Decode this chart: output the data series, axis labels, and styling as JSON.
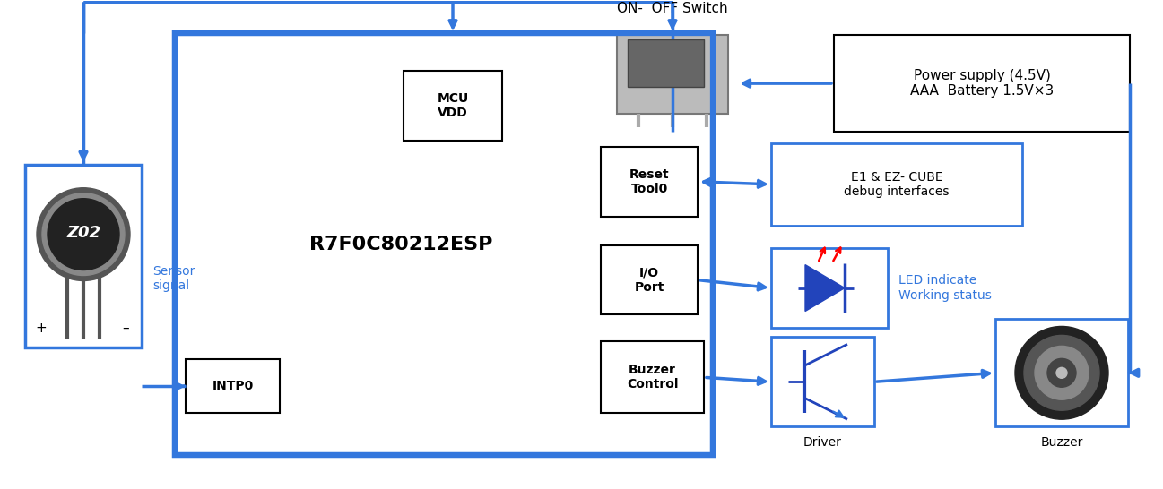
{
  "bg_color": "#ffffff",
  "blue": "#3377dd",
  "lw_main": 2.5,
  "lw_mcu": 4.0,
  "mcu_label": "R7F0C80212ESP",
  "mcu_vdd_label": "MCU\nVDD",
  "reset_label": "Reset\nTool0",
  "io_label": "I/O\nPort",
  "buzzer_ctrl_label": "Buzzer\nControl",
  "intp_label": "INTP0",
  "sensor_label": "Z02",
  "sensor_signal": "Sensor\nsignal",
  "switch_label": "ON-  OFF Switch",
  "power_label": "Power supply (4.5V)\nAAA  Battery 1.5V×3",
  "debug_label": "E1 & EZ- CUBE\ndebug interfaces",
  "led_text": "LED indicate\nWorking status",
  "driver_label": "Driver",
  "buzzer_out_label": "Buzzer"
}
